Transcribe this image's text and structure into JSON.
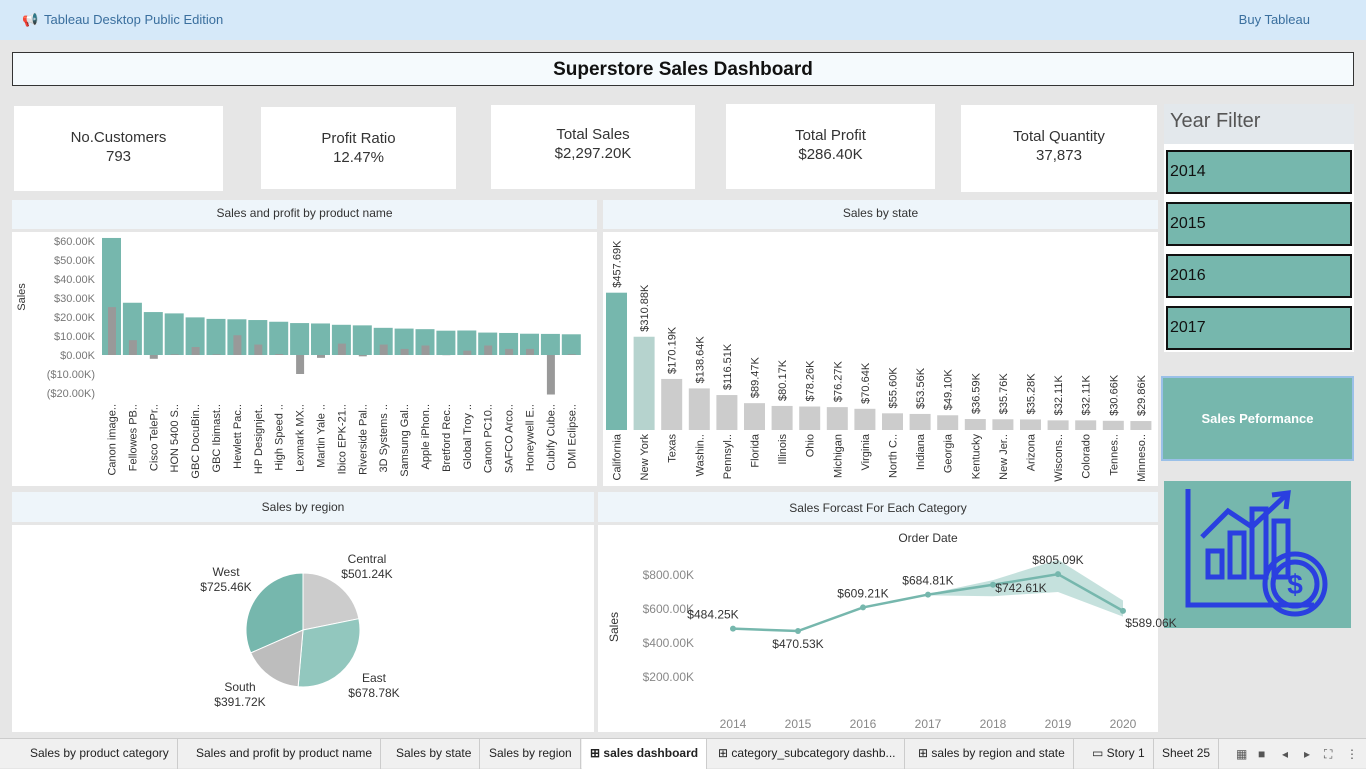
{
  "app": {
    "title": "Tableau Desktop Public Edition",
    "buy": "Buy Tableau"
  },
  "dashboard_title": "Superstore Sales Dashboard",
  "kpis": [
    {
      "label": "No.Customers",
      "value": "793"
    },
    {
      "label": "Profit Ratio",
      "value": "12.47%"
    },
    {
      "label": "Total Sales",
      "value": "$2,297.20K"
    },
    {
      "label": "Total Profit",
      "value": "$286.40K"
    },
    {
      "label": "Total Quantity",
      "value": "37,873"
    }
  ],
  "year_filter": {
    "title": "Year Filter",
    "years": [
      "2014",
      "2015",
      "2016",
      "2017"
    ]
  },
  "sales_performance": "Sales Peformance",
  "colors": {
    "teal": "#76b7ad",
    "gray": "#999999",
    "light_gray": "#cccccc",
    "pale_teal": "#b6d3ce"
  },
  "panels": {
    "product": "Sales and profit by product name",
    "state": "Sales by state",
    "region": "Sales by region",
    "forecast": "Sales Forcast For Each Category"
  },
  "chart_data": [
    {
      "type": "bar",
      "title": "Sales and profit by product name",
      "ylabel": "Sales",
      "ylim": [
        -20,
        60
      ],
      "y_ticks": [
        "$60.00K",
        "$50.00K",
        "$40.00K",
        "$30.00K",
        "$20.00K",
        "$10.00K",
        "$0.00K",
        "($10.00K)",
        "($20.00K)"
      ],
      "categories": [
        "Canon image..",
        "Fellowes PB..",
        "Cisco TelePr..",
        "HON 5400 S..",
        "GBC DocuBin..",
        "GBC Ibimast..",
        "Hewlett Pac..",
        "HP Designjet..",
        "High Speed ..",
        "Lexmark MX..",
        "Martin Yale ..",
        "Ibico EPK-21..",
        "Riverside Pal..",
        "3D Systems ..",
        "Samsung Gal..",
        "Apple iPhon..",
        "Bretford Rec..",
        "Global Troy ..",
        "Canon PC10..",
        "SAFCO Arco..",
        "Honeywell E..",
        "Cubify Cube..",
        "DMI Eclipse.."
      ],
      "series": [
        {
          "name": "Sales",
          "values": [
            61.6,
            27.5,
            22.6,
            21.9,
            19.8,
            19.0,
            18.8,
            18.4,
            17.5,
            16.8,
            16.6,
            15.9,
            15.6,
            14.3,
            13.9,
            13.6,
            12.8,
            12.9,
            11.8,
            11.6,
            11.2,
            11.1,
            10.9
          ]
        },
        {
          "name": "Profit",
          "values": [
            25.2,
            7.8,
            -2.0,
            0.4,
            4.2,
            0.4,
            10.4,
            5.5,
            0.5,
            -10.0,
            -1.5,
            6.0,
            -0.7,
            5.5,
            3.2,
            5.0,
            -0.1,
            2.3,
            5.0,
            3.2,
            3.2,
            -20.8,
            0.4
          ]
        }
      ]
    },
    {
      "type": "bar",
      "title": "Sales by state",
      "categories": [
        "California",
        "New York",
        "Texas",
        "Washin..",
        "Pennsyl..",
        "Florida",
        "Illinois",
        "Ohio",
        "Michigan",
        "Virginia",
        "North C..",
        "Indiana",
        "Georgia",
        "Kentucky",
        "New Jer..",
        "Arizona",
        "Wiscons..",
        "Colorado",
        "Tennes..",
        "Minneso.."
      ],
      "values": [
        457.69,
        310.88,
        170.19,
        138.64,
        116.51,
        89.47,
        80.17,
        78.26,
        76.27,
        70.64,
        55.6,
        53.56,
        49.1,
        36.59,
        35.76,
        35.28,
        32.11,
        32.11,
        30.66,
        29.86
      ],
      "labels": [
        "$457.69K",
        "$310.88K",
        "$170.19K",
        "$138.64K",
        "$116.51K",
        "$89.47K",
        "$80.17K",
        "$78.26K",
        "$76.27K",
        "$70.64K",
        "$55.60K",
        "$53.56K",
        "$49.10K",
        "$36.59K",
        "$35.76K",
        "$35.28K",
        "$32.11K",
        "$32.11K",
        "$30.66K",
        "$29.86K"
      ]
    },
    {
      "type": "pie",
      "title": "Sales by region",
      "slices": [
        {
          "name": "West",
          "value": 725.46,
          "label": "$725.46K"
        },
        {
          "name": "Central",
          "value": 501.24,
          "label": "$501.24K"
        },
        {
          "name": "East",
          "value": 678.78,
          "label": "$678.78K"
        },
        {
          "name": "South",
          "value": 391.72,
          "label": "$391.72K"
        }
      ]
    },
    {
      "type": "line",
      "title": "Sales Forcast For Each Category",
      "xlabel": "Order Date",
      "ylabel": "Sales",
      "ylim": [
        200,
        900
      ],
      "y_ticks": [
        "$800.00K",
        "$600.00K",
        "$400.00K",
        "$200.00K"
      ],
      "x": [
        "2014",
        "2015",
        "2016",
        "2017",
        "2018",
        "2019",
        "2020"
      ],
      "values": [
        484.25,
        470.53,
        609.21,
        684.81,
        742.61,
        805.09,
        589.06
      ],
      "labels": [
        "$484.25K",
        "$470.53K",
        "$609.21K",
        "$684.81K",
        "$742.61K",
        "$805.09K",
        "$589.06K"
      ],
      "forecast_band": {
        "x": [
          "2017",
          "2018",
          "2019",
          "2020"
        ],
        "upper": [
          688,
          770,
          890,
          650
        ],
        "lower": [
          680,
          675,
          700,
          555
        ]
      }
    }
  ],
  "tabs": [
    "Sales by product category",
    "Sales and profit by product name",
    "Sales by state",
    "Sales by region",
    "sales dashboard",
    "category_subcategory dashb...",
    "sales by region and state",
    "Story 1",
    "Sheet 25"
  ]
}
